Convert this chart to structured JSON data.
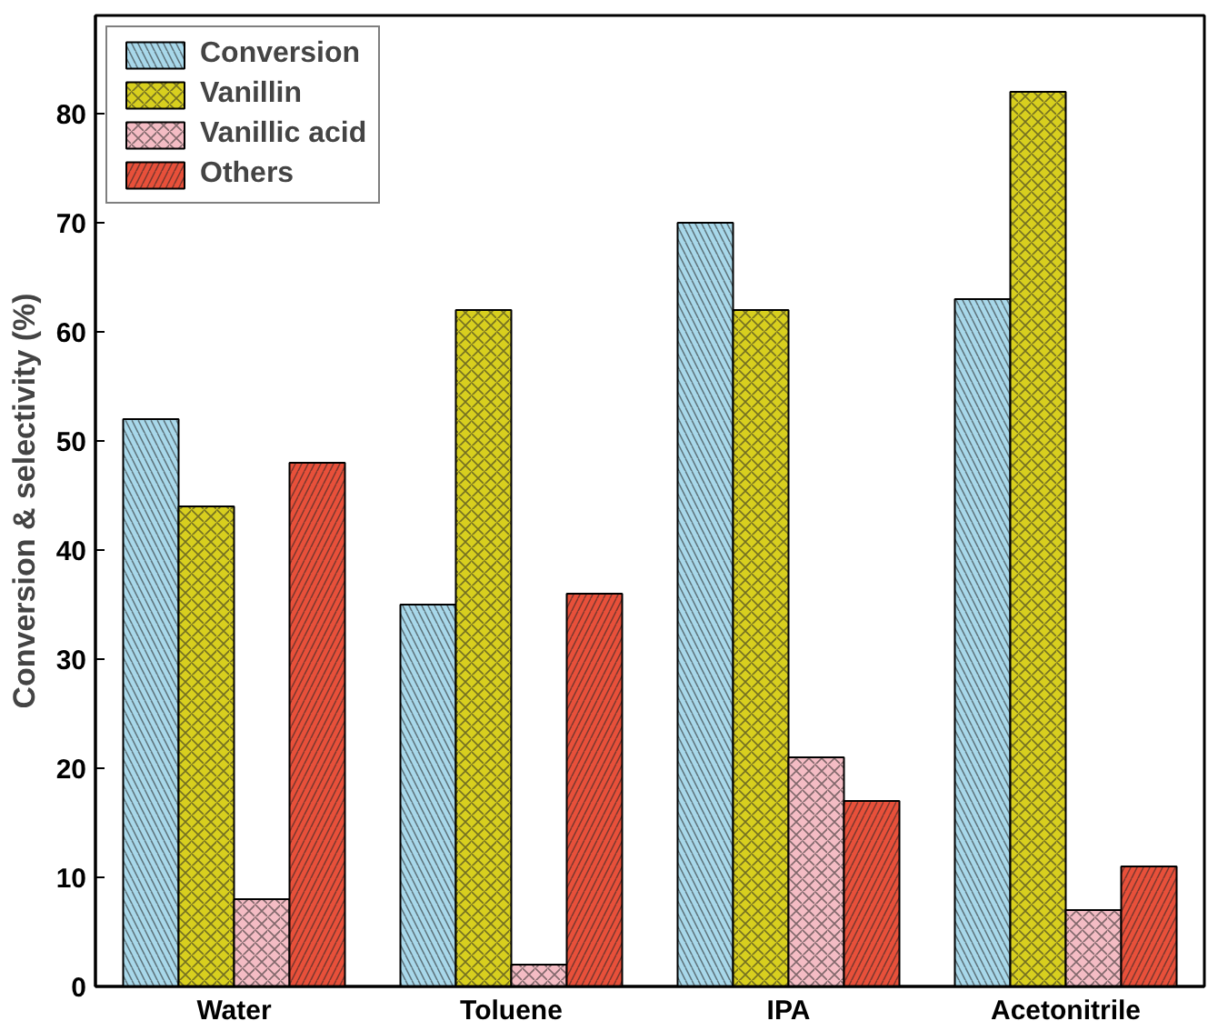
{
  "chart_data": {
    "type": "bar",
    "ylabel": "Conversion & selectivity (%)",
    "categories": [
      "Water",
      "Toluene",
      "IPA",
      "Acetonitrile"
    ],
    "series": [
      {
        "name": "Conversion",
        "color": "#a8d8ea",
        "values": [
          52,
          35,
          70,
          63
        ]
      },
      {
        "name": "Vanillin",
        "color": "#d8cf1e",
        "values": [
          44,
          62,
          62,
          82
        ]
      },
      {
        "name": "Vanillic acid",
        "color": "#f4bcc4",
        "values": [
          8,
          2,
          21,
          7
        ]
      },
      {
        "name": "Others",
        "color": "#e8503a",
        "values": [
          48,
          36,
          17,
          11
        ]
      }
    ],
    "ylim": [
      0,
      89
    ],
    "yticks": [
      0,
      10,
      20,
      30,
      40,
      50,
      60,
      70,
      80
    ],
    "grid": false,
    "legend": "top left"
  }
}
